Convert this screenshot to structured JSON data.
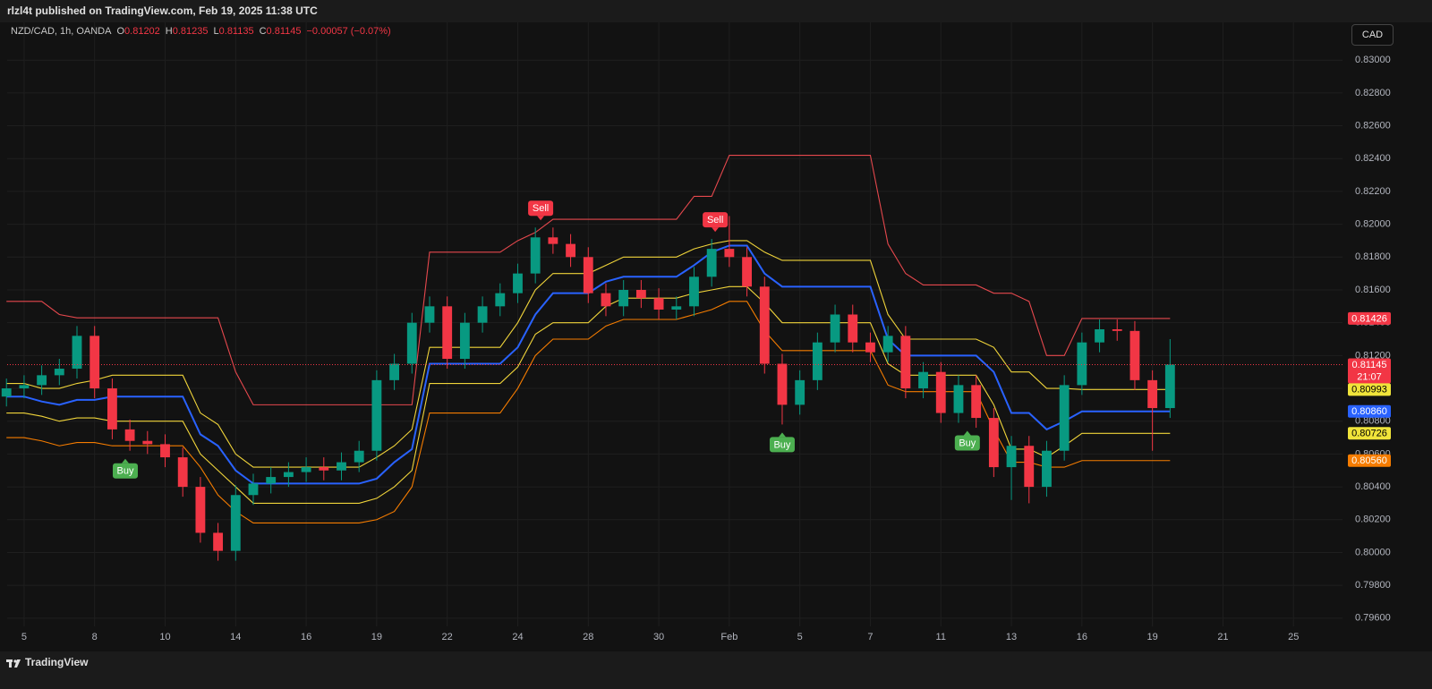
{
  "chart_data": {
    "type": "candlestick",
    "header": "rlzl4t published on TradingView.com, Feb 19, 2025 11:38 UTC",
    "symbol": "NZD/CAD, 1h, OANDA",
    "ohlc_legend": [
      {
        "key": "O",
        "value": "0.81202"
      },
      {
        "key": "H",
        "value": "0.81235"
      },
      {
        "key": "L",
        "value": "0.81135"
      },
      {
        "key": "C",
        "value": "0.81145"
      }
    ],
    "change": "−0.00057 (−0.07%)",
    "currency": "CAD",
    "brand": "TradingView",
    "up_color": "#089981",
    "down_color": "#f23645",
    "x": [
      -0.5,
      0,
      0.5,
      1,
      1.5,
      2,
      2.5,
      3,
      3.5,
      4,
      4.5,
      5,
      5.5,
      6,
      6.5,
      7,
      7.5,
      8,
      8.5,
      9,
      9.5,
      10,
      10.5,
      11,
      11.5,
      12,
      12.5,
      13,
      13.5,
      14,
      14.5,
      15,
      15.5,
      16,
      16.5,
      17,
      17.5,
      18,
      18.5,
      19,
      19.5,
      20,
      20.5,
      21,
      21.5,
      22,
      22.5,
      23,
      23.5,
      24,
      24.5,
      25,
      25.5,
      26,
      26.5,
      27,
      27.5,
      28,
      28.5,
      29,
      29.5,
      30,
      30.5,
      31,
      31.5,
      32,
      32.5
    ],
    "open": [
      0.8095,
      0.81,
      0.8102,
      0.8108,
      0.8112,
      0.8132,
      0.81,
      0.8075,
      0.8068,
      0.8066,
      0.8058,
      0.804,
      0.8012,
      0.8001,
      0.8035,
      0.8042,
      0.8046,
      0.8049,
      0.8052,
      0.805,
      0.8055,
      0.8062,
      0.8105,
      0.8115,
      0.814,
      0.815,
      0.8118,
      0.814,
      0.815,
      0.8158,
      0.817,
      0.8192,
      0.8188,
      0.818,
      0.8158,
      0.815,
      0.816,
      0.8155,
      0.8148,
      0.815,
      0.8168,
      0.8185,
      0.818,
      0.8162,
      0.8115,
      0.809,
      0.8105,
      0.8128,
      0.8145,
      0.8128,
      0.8122,
      0.8132,
      0.81,
      0.811,
      0.8085,
      0.8102,
      0.8082,
      0.8052,
      0.8065,
      0.804,
      0.8062,
      0.8102,
      0.8128,
      0.8136,
      0.8135,
      0.8105,
      0.8088
    ],
    "high": [
      0.8106,
      0.8108,
      0.8114,
      0.8118,
      0.8138,
      0.8138,
      0.8106,
      0.8081,
      0.8074,
      0.8072,
      0.8064,
      0.8046,
      0.8018,
      0.8041,
      0.8048,
      0.8052,
      0.8055,
      0.8058,
      0.8058,
      0.8061,
      0.8068,
      0.8111,
      0.8121,
      0.8146,
      0.8156,
      0.8156,
      0.8146,
      0.8156,
      0.8164,
      0.8176,
      0.8198,
      0.8198,
      0.8194,
      0.8186,
      0.8164,
      0.8166,
      0.8166,
      0.8161,
      0.8156,
      0.8174,
      0.8191,
      0.8205,
      0.8186,
      0.8168,
      0.8121,
      0.8111,
      0.8134,
      0.8151,
      0.8151,
      0.8134,
      0.8138,
      0.8138,
      0.8116,
      0.8116,
      0.8108,
      0.8108,
      0.8088,
      0.8071,
      0.8071,
      0.8068,
      0.8108,
      0.8134,
      0.8142,
      0.8142,
      0.8141,
      0.8111,
      0.813
    ],
    "low": [
      0.8089,
      0.8094,
      0.8096,
      0.8102,
      0.8106,
      0.8094,
      0.8069,
      0.8062,
      0.806,
      0.8052,
      0.8034,
      0.8006,
      0.7995,
      0.7995,
      0.8029,
      0.8036,
      0.804,
      0.8043,
      0.8044,
      0.8044,
      0.8049,
      0.8056,
      0.8099,
      0.8109,
      0.8134,
      0.8112,
      0.8112,
      0.8134,
      0.8144,
      0.8152,
      0.8164,
      0.8182,
      0.8174,
      0.8152,
      0.8144,
      0.8144,
      0.8149,
      0.8142,
      0.8142,
      0.8144,
      0.8162,
      0.8174,
      0.8156,
      0.8109,
      0.8078,
      0.8084,
      0.8099,
      0.8122,
      0.8122,
      0.8116,
      0.8116,
      0.8094,
      0.8094,
      0.8079,
      0.8079,
      0.8076,
      0.8046,
      0.8032,
      0.803,
      0.8034,
      0.8056,
      0.8096,
      0.8122,
      0.8129,
      0.8099,
      0.8062,
      0.8082
    ],
    "close": [
      0.81,
      0.8102,
      0.8108,
      0.8112,
      0.8132,
      0.81,
      0.8075,
      0.8068,
      0.8066,
      0.8058,
      0.804,
      0.8012,
      0.8001,
      0.8035,
      0.8042,
      0.8046,
      0.8049,
      0.8052,
      0.805,
      0.8055,
      0.8062,
      0.8105,
      0.8115,
      0.814,
      0.815,
      0.8118,
      0.814,
      0.815,
      0.8158,
      0.817,
      0.8192,
      0.8188,
      0.818,
      0.8158,
      0.815,
      0.816,
      0.8155,
      0.8148,
      0.815,
      0.8168,
      0.8185,
      0.818,
      0.8162,
      0.8115,
      0.809,
      0.8105,
      0.8128,
      0.8145,
      0.8128,
      0.8122,
      0.8132,
      0.81,
      0.811,
      0.8085,
      0.8102,
      0.8082,
      0.8052,
      0.8065,
      0.804,
      0.8062,
      0.8102,
      0.8128,
      0.8136,
      0.8135,
      0.8105,
      0.8088,
      0.81145
    ],
    "series": [
      {
        "color": "#e5484d",
        "values": [
          0.8153,
          0.8153,
          0.8153,
          0.8145,
          0.8143,
          0.8143,
          0.8143,
          0.8143,
          0.8143,
          0.8143,
          0.8143,
          0.8143,
          0.8143,
          0.811,
          0.809,
          0.809,
          0.809,
          0.809,
          0.809,
          0.809,
          0.809,
          0.809,
          0.809,
          0.809,
          0.8183,
          0.8183,
          0.8183,
          0.8183,
          0.8183,
          0.819,
          0.8195,
          0.8203,
          0.8203,
          0.8203,
          0.8203,
          0.8203,
          0.8203,
          0.8203,
          0.8203,
          0.8217,
          0.8217,
          0.8242,
          0.8242,
          0.8242,
          0.8242,
          0.8242,
          0.8242,
          0.8242,
          0.8242,
          0.8242,
          0.8188,
          0.817,
          0.8163,
          0.8163,
          0.8163,
          0.8163,
          0.8158,
          0.8158,
          0.8153,
          0.812,
          0.812,
          0.81426,
          0.81426,
          0.81426,
          0.81426,
          0.81426,
          0.81426
        ]
      },
      {
        "color": "#f0d43a",
        "values": [
          0.8103,
          0.8103,
          0.81,
          0.81,
          0.8103,
          0.8105,
          0.8108,
          0.8108,
          0.8108,
          0.8108,
          0.8108,
          0.8085,
          0.8078,
          0.806,
          0.8052,
          0.8052,
          0.8052,
          0.8052,
          0.8052,
          0.8052,
          0.8052,
          0.8058,
          0.8065,
          0.8075,
          0.8125,
          0.8125,
          0.8125,
          0.8125,
          0.8125,
          0.814,
          0.816,
          0.817,
          0.817,
          0.817,
          0.8175,
          0.818,
          0.818,
          0.818,
          0.818,
          0.8185,
          0.8188,
          0.819,
          0.819,
          0.8183,
          0.8178,
          0.8178,
          0.8178,
          0.8178,
          0.8178,
          0.8178,
          0.8145,
          0.813,
          0.813,
          0.813,
          0.813,
          0.813,
          0.8125,
          0.811,
          0.811,
          0.81,
          0.81,
          0.80993,
          0.80993,
          0.80993,
          0.80993,
          0.80993,
          0.80993
        ]
      },
      {
        "color": "#2962ff",
        "values": [
          0.8095,
          0.8095,
          0.8092,
          0.809,
          0.8093,
          0.8093,
          0.8095,
          0.8095,
          0.8095,
          0.8095,
          0.8095,
          0.8072,
          0.8065,
          0.805,
          0.8042,
          0.8042,
          0.8042,
          0.8042,
          0.8042,
          0.8042,
          0.8042,
          0.8045,
          0.8055,
          0.8063,
          0.8115,
          0.8115,
          0.8115,
          0.8115,
          0.8115,
          0.8125,
          0.8145,
          0.8158,
          0.8158,
          0.8158,
          0.8165,
          0.8168,
          0.8168,
          0.8168,
          0.8168,
          0.8175,
          0.8183,
          0.8187,
          0.8187,
          0.817,
          0.8162,
          0.8162,
          0.8162,
          0.8162,
          0.8162,
          0.8162,
          0.813,
          0.812,
          0.812,
          0.812,
          0.812,
          0.812,
          0.811,
          0.8085,
          0.8085,
          0.8075,
          0.808,
          0.8086,
          0.8086,
          0.8086,
          0.8086,
          0.8086,
          0.8086
        ]
      },
      {
        "color": "#f0d43a",
        "values": [
          0.8085,
          0.8085,
          0.8083,
          0.808,
          0.8082,
          0.8082,
          0.808,
          0.808,
          0.808,
          0.808,
          0.808,
          0.806,
          0.805,
          0.804,
          0.803,
          0.803,
          0.803,
          0.803,
          0.803,
          0.803,
          0.803,
          0.8033,
          0.804,
          0.805,
          0.8103,
          0.8103,
          0.8103,
          0.8103,
          0.8103,
          0.8113,
          0.8133,
          0.814,
          0.814,
          0.814,
          0.815,
          0.8155,
          0.8155,
          0.8155,
          0.8155,
          0.8158,
          0.816,
          0.8162,
          0.8162,
          0.8152,
          0.814,
          0.814,
          0.814,
          0.814,
          0.814,
          0.814,
          0.8115,
          0.8108,
          0.8108,
          0.8108,
          0.8108,
          0.8108,
          0.809,
          0.8063,
          0.8063,
          0.8058,
          0.8065,
          0.80726,
          0.80726,
          0.80726,
          0.80726,
          0.80726,
          0.80726
        ]
      },
      {
        "color": "#f57c00",
        "values": [
          0.807,
          0.807,
          0.8068,
          0.8065,
          0.8067,
          0.8067,
          0.8065,
          0.8065,
          0.8065,
          0.8065,
          0.8065,
          0.8052,
          0.8035,
          0.8025,
          0.8018,
          0.8018,
          0.8018,
          0.8018,
          0.8018,
          0.8018,
          0.8018,
          0.802,
          0.8025,
          0.804,
          0.8085,
          0.8085,
          0.8085,
          0.8085,
          0.8085,
          0.81,
          0.812,
          0.813,
          0.813,
          0.813,
          0.8138,
          0.8142,
          0.8142,
          0.8142,
          0.8142,
          0.8145,
          0.8148,
          0.8153,
          0.8153,
          0.8135,
          0.8123,
          0.8123,
          0.8123,
          0.8123,
          0.8123,
          0.8123,
          0.8102,
          0.8098,
          0.8098,
          0.8098,
          0.8098,
          0.8098,
          0.8075,
          0.8055,
          0.8055,
          0.8052,
          0.8052,
          0.8056,
          0.8056,
          0.8056,
          0.8056,
          0.8056,
          0.8056
        ]
      }
    ],
    "signals": [
      {
        "label": "Buy",
        "x": 2.87,
        "side": "below",
        "color": "#4caf50"
      },
      {
        "label": "Sell",
        "x": 14.65,
        "side": "above",
        "color": "#f23645"
      },
      {
        "label": "Sell",
        "x": 19.6,
        "side": "above",
        "color": "#f23645"
      },
      {
        "label": "Buy",
        "x": 21.5,
        "side": "below",
        "color": "#4caf50"
      },
      {
        "label": "Buy",
        "x": 26.75,
        "side": "below",
        "color": "#4caf50"
      }
    ],
    "price_tags": [
      {
        "value": 0.81426,
        "label": "0.81426",
        "color": "#f23645",
        "text_color": "#ffffff"
      },
      {
        "value": 0.81145,
        "label": "0.81145",
        "color": "#f23645",
        "text_color": "#ffffff",
        "dotted_line": true
      },
      {
        "value": 0.80993,
        "label": "0.80993",
        "color": "#f0e43a",
        "text_color": "#000000"
      },
      {
        "value": 0.8086,
        "label": "0.80860",
        "color": "#2962ff",
        "text_color": "#ffffff"
      },
      {
        "value": 0.80726,
        "label": "0.80726",
        "color": "#f0e43a",
        "text_color": "#000000"
      },
      {
        "value": 0.8056,
        "label": "0.80560",
        "color": "#f57c00",
        "text_color": "#ffffff"
      }
    ],
    "countdown": "21:07",
    "xlim": [
      -0.48,
      37.39
    ],
    "ylim": [
      0.7955,
      0.8323
    ],
    "xticks": [
      {
        "value": 0,
        "label": "5"
      },
      {
        "value": 2,
        "label": "8"
      },
      {
        "value": 4,
        "label": "10"
      },
      {
        "value": 6,
        "label": "14"
      },
      {
        "value": 8,
        "label": "16"
      },
      {
        "value": 10,
        "label": "19"
      },
      {
        "value": 12,
        "label": "22"
      },
      {
        "value": 14,
        "label": "24"
      },
      {
        "value": 16,
        "label": "28"
      },
      {
        "value": 18,
        "label": "30"
      },
      {
        "value": 20,
        "label": "Feb"
      },
      {
        "value": 22,
        "label": "5"
      },
      {
        "value": 24,
        "label": "7"
      },
      {
        "value": 26,
        "label": "11"
      },
      {
        "value": 28,
        "label": "13"
      },
      {
        "value": 30,
        "label": "16"
      },
      {
        "value": 32,
        "label": "19"
      },
      {
        "value": 34,
        "label": "21"
      },
      {
        "value": 36,
        "label": "25"
      }
    ],
    "yticks": [
      {
        "value": 0.796,
        "label": "0.79600"
      },
      {
        "value": 0.798,
        "label": "0.79800"
      },
      {
        "value": 0.8,
        "label": "0.80000"
      },
      {
        "value": 0.802,
        "label": "0.80200"
      },
      {
        "value": 0.804,
        "label": "0.80400"
      },
      {
        "value": 0.806,
        "label": "0.80600"
      },
      {
        "value": 0.808,
        "label": "0.80800"
      },
      {
        "value": 0.81,
        "label": "0.81000"
      },
      {
        "value": 0.812,
        "label": "0.81200"
      },
      {
        "value": 0.814,
        "label": "0.81400"
      },
      {
        "value": 0.816,
        "label": "0.81600"
      },
      {
        "value": 0.818,
        "label": "0.81800"
      },
      {
        "value": 0.82,
        "label": "0.82000"
      },
      {
        "value": 0.822,
        "label": "0.82200"
      },
      {
        "value": 0.824,
        "label": "0.82400"
      },
      {
        "value": 0.826,
        "label": "0.82600"
      },
      {
        "value": 0.828,
        "label": "0.82800"
      },
      {
        "value": 0.83,
        "label": "0.83000"
      }
    ],
    "grid": true
  }
}
